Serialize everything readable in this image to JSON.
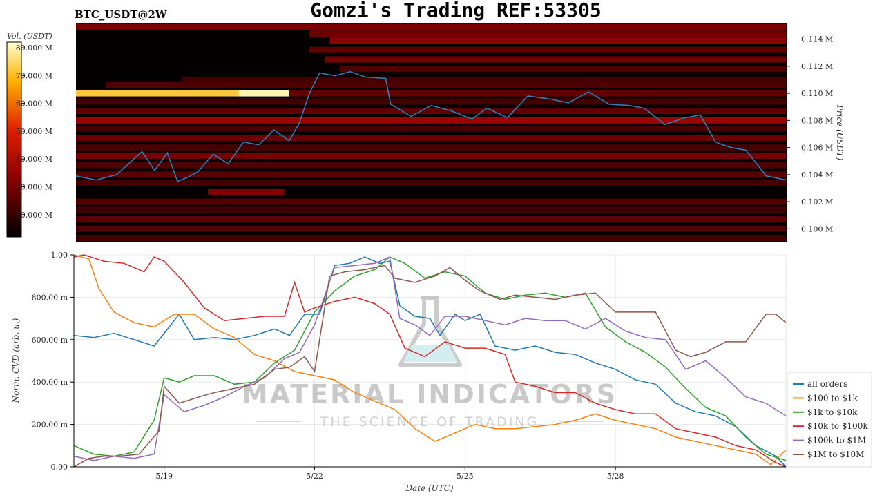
{
  "header": {
    "title": "Gomzi's Trading REF:53305",
    "symbol": "BTC_USDT@2W"
  },
  "watermark": {
    "line1": "MATERIAL INDICATORS",
    "line2": "THE SCIENCE OF TRADING"
  },
  "colors": {
    "heatmap_bg": "#050000",
    "price_line": "#2c7fb8"
  },
  "chart_data": [
    {
      "type": "heatmap",
      "ylabel": "Price (USDT)",
      "colorbar_label": "Vol. (USDT)",
      "colorbar_ticks": [
        "80.000 M",
        "70.000 M",
        "60.000 M",
        "50.000 M",
        "40.000 M",
        "30.000 M",
        "20.000 M"
      ],
      "colorbar_values": [
        80,
        70,
        60,
        50,
        40,
        30,
        20
      ],
      "colorbar_range": [
        12,
        82
      ],
      "y_ticks": [
        "0.114 M",
        "0.112 M",
        "0.110 M",
        "0.108 M",
        "0.106 M",
        "0.104 M",
        "0.102 M",
        "0.100 M"
      ],
      "y_tick_values": [
        114,
        112,
        110,
        108,
        106,
        104,
        102,
        100
      ],
      "ylim": [
        99.0,
        115.2
      ],
      "xlim": [
        17.4,
        31.4
      ],
      "price_line": {
        "x": [
          17.4,
          17.8,
          18.2,
          18.7,
          18.95,
          19.2,
          19.4,
          19.6,
          19.8,
          20.1,
          20.4,
          20.7,
          21.0,
          21.3,
          21.6,
          21.8,
          22.0,
          22.2,
          22.5,
          22.8,
          23.1,
          23.5,
          23.6,
          24.0,
          24.4,
          24.8,
          25.2,
          25.5,
          25.9,
          26.3,
          26.7,
          27.1,
          27.5,
          27.9,
          28.3,
          28.6,
          29.0,
          29.4,
          29.7,
          30.0,
          30.3,
          30.6,
          31.0,
          31.4
        ],
        "y": [
          103.9,
          103.6,
          104.0,
          105.7,
          104.3,
          105.6,
          103.5,
          103.8,
          104.2,
          105.5,
          104.8,
          106.4,
          106.2,
          107.3,
          106.5,
          107.8,
          110.0,
          111.5,
          111.3,
          111.6,
          111.2,
          111.1,
          109.2,
          108.3,
          109.1,
          108.7,
          108.1,
          108.9,
          108.2,
          109.8,
          109.6,
          109.3,
          110.1,
          109.2,
          109.1,
          108.9,
          107.7,
          108.2,
          108.4,
          106.4,
          106.0,
          105.8,
          103.9,
          103.6
        ]
      },
      "order_bands": [
        {
          "price": 114.9,
          "x0": 17.4,
          "x1": 31.4,
          "vol": 30
        },
        {
          "price": 114.4,
          "x0": 22.0,
          "x1": 31.4,
          "vol": 28
        },
        {
          "price": 113.9,
          "x0": 22.4,
          "x1": 31.4,
          "vol": 33
        },
        {
          "price": 113.2,
          "x0": 22.0,
          "x1": 31.4,
          "vol": 27
        },
        {
          "price": 112.5,
          "x0": 22.3,
          "x1": 31.4,
          "vol": 30
        },
        {
          "price": 111.8,
          "x0": 22.6,
          "x1": 31.4,
          "vol": 24
        },
        {
          "price": 111.0,
          "x0": 19.5,
          "x1": 31.4,
          "vol": 22
        },
        {
          "price": 110.6,
          "x0": 18.0,
          "x1": 31.4,
          "vol": 24
        },
        {
          "price": 110.0,
          "x0": 17.4,
          "x1": 20.6,
          "vol": 72
        },
        {
          "price": 110.0,
          "x0": 20.6,
          "x1": 21.6,
          "vol": 80
        },
        {
          "price": 110.0,
          "x0": 21.6,
          "x1": 31.4,
          "vol": 27
        },
        {
          "price": 109.4,
          "x0": 17.4,
          "x1": 31.4,
          "vol": 22
        },
        {
          "price": 108.7,
          "x0": 17.4,
          "x1": 31.4,
          "vol": 26
        },
        {
          "price": 108.0,
          "x0": 17.4,
          "x1": 31.4,
          "vol": 36
        },
        {
          "price": 107.4,
          "x0": 17.4,
          "x1": 31.4,
          "vol": 23
        },
        {
          "price": 106.7,
          "x0": 17.4,
          "x1": 31.4,
          "vol": 28
        },
        {
          "price": 106.0,
          "x0": 17.4,
          "x1": 31.4,
          "vol": 22
        },
        {
          "price": 105.4,
          "x0": 17.4,
          "x1": 31.4,
          "vol": 30
        },
        {
          "price": 104.7,
          "x0": 17.4,
          "x1": 31.4,
          "vol": 24
        },
        {
          "price": 104.0,
          "x0": 17.4,
          "x1": 31.4,
          "vol": 26
        },
        {
          "price": 103.4,
          "x0": 17.4,
          "x1": 31.4,
          "vol": 22
        },
        {
          "price": 102.7,
          "x0": 20.0,
          "x1": 21.5,
          "vol": 32
        },
        {
          "price": 102.0,
          "x0": 17.4,
          "x1": 31.4,
          "vol": 25
        },
        {
          "price": 101.4,
          "x0": 17.4,
          "x1": 31.4,
          "vol": 22
        },
        {
          "price": 100.7,
          "x0": 17.4,
          "x1": 31.4,
          "vol": 26
        },
        {
          "price": 100.0,
          "x0": 17.4,
          "x1": 31.4,
          "vol": 24
        },
        {
          "price": 99.3,
          "x0": 17.4,
          "x1": 31.4,
          "vol": 22
        }
      ]
    },
    {
      "type": "line",
      "xlabel": "Date (UTC)",
      "ylabel": "Norm. CVD (arb. u.)",
      "x_ticks": [
        "5/19",
        "5/22",
        "5/25",
        "5/28"
      ],
      "x_tick_values": [
        19,
        22,
        25,
        28
      ],
      "xlim": [
        17.2,
        31.4
      ],
      "y_ticks": [
        "0.00",
        "200.00 m",
        "400.00 m",
        "600.00 m",
        "800.00 m",
        "1.00"
      ],
      "y_tick_values": [
        0,
        0.2,
        0.4,
        0.6,
        0.8,
        1.0
      ],
      "ylim": [
        0,
        1.0
      ],
      "grid": true,
      "legend_position": "lower-right",
      "series": [
        {
          "name": "all orders",
          "color": "#1f77b4",
          "x": [
            17.2,
            17.6,
            18.0,
            18.4,
            18.8,
            19.0,
            19.3,
            19.6,
            20.0,
            20.4,
            20.8,
            21.2,
            21.5,
            21.8,
            22.1,
            22.4,
            22.7,
            23.0,
            23.3,
            23.5,
            23.7,
            24.0,
            24.3,
            24.5,
            24.8,
            25.0,
            25.3,
            25.6,
            26.0,
            26.4,
            26.8,
            27.2,
            27.6,
            28.0,
            28.4,
            28.8,
            29.2,
            29.6,
            30.0,
            30.4,
            30.8,
            31.2,
            31.4
          ],
          "y": [
            0.62,
            0.61,
            0.63,
            0.6,
            0.57,
            0.63,
            0.72,
            0.6,
            0.61,
            0.6,
            0.62,
            0.65,
            0.62,
            0.72,
            0.72,
            0.95,
            0.96,
            0.99,
            0.96,
            0.97,
            0.76,
            0.71,
            0.7,
            0.62,
            0.72,
            0.69,
            0.72,
            0.57,
            0.55,
            0.57,
            0.54,
            0.53,
            0.49,
            0.46,
            0.41,
            0.39,
            0.3,
            0.26,
            0.24,
            0.19,
            0.1,
            0.05,
            0.0
          ]
        },
        {
          "name": "$100 to $1k",
          "color": "#ff7f0e",
          "x": [
            17.2,
            17.5,
            17.7,
            18.0,
            18.4,
            18.8,
            19.2,
            19.6,
            20.0,
            20.4,
            20.8,
            21.2,
            21.6,
            22.0,
            22.4,
            22.8,
            23.2,
            23.6,
            24.0,
            24.4,
            24.8,
            25.2,
            25.6,
            26.0,
            26.4,
            26.8,
            27.2,
            27.6,
            28.0,
            28.4,
            28.8,
            29.2,
            29.6,
            30.0,
            30.4,
            30.8,
            31.1,
            31.4
          ],
          "y": [
            1.0,
            0.98,
            0.84,
            0.73,
            0.68,
            0.66,
            0.72,
            0.72,
            0.65,
            0.61,
            0.53,
            0.5,
            0.45,
            0.43,
            0.41,
            0.35,
            0.31,
            0.27,
            0.18,
            0.12,
            0.16,
            0.2,
            0.18,
            0.18,
            0.19,
            0.2,
            0.22,
            0.25,
            0.22,
            0.2,
            0.18,
            0.14,
            0.12,
            0.1,
            0.08,
            0.06,
            0.01,
            0.08
          ]
        },
        {
          "name": "$1k to $10k",
          "color": "#2ca02c",
          "x": [
            17.2,
            17.6,
            18.0,
            18.4,
            18.8,
            19.0,
            19.3,
            19.6,
            20.0,
            20.4,
            20.8,
            21.2,
            21.6,
            22.0,
            22.4,
            22.8,
            23.2,
            23.5,
            23.8,
            24.2,
            24.6,
            25.0,
            25.4,
            25.8,
            26.2,
            26.6,
            27.0,
            27.4,
            27.8,
            28.2,
            28.6,
            29.0,
            29.4,
            29.8,
            30.2,
            30.6,
            31.0,
            31.4
          ],
          "y": [
            0.1,
            0.06,
            0.05,
            0.07,
            0.22,
            0.42,
            0.4,
            0.43,
            0.43,
            0.39,
            0.4,
            0.49,
            0.55,
            0.73,
            0.83,
            0.9,
            0.93,
            0.99,
            0.96,
            0.89,
            0.92,
            0.9,
            0.82,
            0.79,
            0.81,
            0.82,
            0.8,
            0.82,
            0.66,
            0.59,
            0.54,
            0.47,
            0.37,
            0.28,
            0.24,
            0.14,
            0.06,
            0.03
          ]
        },
        {
          "name": "$10k to $100k",
          "color": "#d62728",
          "x": [
            17.2,
            17.4,
            17.8,
            18.2,
            18.6,
            18.8,
            19.0,
            19.4,
            19.8,
            20.2,
            20.6,
            21.0,
            21.4,
            21.6,
            21.8,
            22.0,
            22.4,
            22.8,
            23.2,
            23.5,
            23.8,
            24.2,
            24.6,
            25.0,
            25.4,
            25.8,
            26.0,
            26.4,
            26.8,
            27.2,
            27.6,
            28.0,
            28.4,
            28.8,
            29.2,
            29.6,
            30.0,
            30.4,
            30.8,
            31.2,
            31.4
          ],
          "y": [
            0.99,
            1.0,
            0.97,
            0.96,
            0.92,
            0.99,
            0.97,
            0.87,
            0.75,
            0.69,
            0.7,
            0.71,
            0.71,
            0.87,
            0.73,
            0.75,
            0.78,
            0.8,
            0.77,
            0.72,
            0.56,
            0.52,
            0.59,
            0.56,
            0.56,
            0.53,
            0.4,
            0.38,
            0.35,
            0.35,
            0.3,
            0.27,
            0.25,
            0.25,
            0.18,
            0.16,
            0.14,
            0.1,
            0.08,
            0.02,
            0.0
          ]
        },
        {
          "name": "$100k to $1M",
          "color": "#9467bd",
          "x": [
            17.2,
            17.6,
            18.0,
            18.4,
            18.8,
            19.0,
            19.4,
            19.8,
            20.2,
            20.6,
            21.0,
            21.4,
            21.7,
            22.0,
            22.4,
            22.8,
            23.2,
            23.5,
            23.7,
            24.0,
            24.3,
            24.6,
            25.0,
            25.4,
            25.8,
            26.2,
            26.6,
            27.0,
            27.4,
            27.8,
            28.2,
            28.6,
            29.0,
            29.4,
            29.8,
            30.2,
            30.6,
            31.0,
            31.4
          ],
          "y": [
            0.05,
            0.03,
            0.05,
            0.04,
            0.06,
            0.34,
            0.26,
            0.29,
            0.33,
            0.38,
            0.42,
            0.51,
            0.54,
            0.67,
            0.94,
            0.95,
            0.96,
            0.99,
            0.7,
            0.67,
            0.62,
            0.71,
            0.71,
            0.69,
            0.67,
            0.7,
            0.69,
            0.69,
            0.65,
            0.7,
            0.64,
            0.61,
            0.6,
            0.46,
            0.5,
            0.42,
            0.33,
            0.3,
            0.24
          ]
        },
        {
          "name": "$1M to $10M",
          "color": "#8c564b",
          "x": [
            17.2,
            17.5,
            17.8,
            18.1,
            18.5,
            18.9,
            19.0,
            19.3,
            19.7,
            20.0,
            20.4,
            20.8,
            21.2,
            21.5,
            21.8,
            22.0,
            22.3,
            22.6,
            23.0,
            23.4,
            23.6,
            24.0,
            24.4,
            24.7,
            25.0,
            25.3,
            25.7,
            26.0,
            26.4,
            26.8,
            27.2,
            27.6,
            28.0,
            28.4,
            28.8,
            29.2,
            29.5,
            29.8,
            30.2,
            30.6,
            31.0,
            31.2,
            31.4
          ],
          "y": [
            0.0,
            0.04,
            0.05,
            0.05,
            0.06,
            0.17,
            0.38,
            0.3,
            0.33,
            0.35,
            0.37,
            0.39,
            0.46,
            0.47,
            0.52,
            0.45,
            0.9,
            0.92,
            0.93,
            0.95,
            0.89,
            0.87,
            0.9,
            0.94,
            0.88,
            0.83,
            0.79,
            0.81,
            0.8,
            0.79,
            0.81,
            0.82,
            0.73,
            0.73,
            0.73,
            0.55,
            0.52,
            0.54,
            0.59,
            0.59,
            0.72,
            0.72,
            0.68
          ]
        }
      ]
    }
  ]
}
